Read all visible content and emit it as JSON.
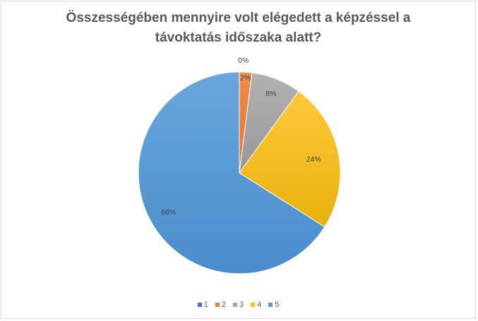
{
  "chart_data": {
    "type": "pie",
    "title_line1": "Összességében mennyire volt elégedett a képzéssel a",
    "title_line2": "távoktatás időszaka alatt?",
    "categories": [
      "1",
      "2",
      "3",
      "4",
      "5"
    ],
    "values": [
      0,
      2,
      8,
      24,
      66
    ],
    "labels": [
      "0%",
      "2%",
      "8%",
      "24%",
      "66%"
    ],
    "colors": [
      "#4472c4",
      "#ed7d31",
      "#a5a5a5",
      "#ffc000",
      "#5b9bd5"
    ],
    "legend_position": "bottom"
  }
}
